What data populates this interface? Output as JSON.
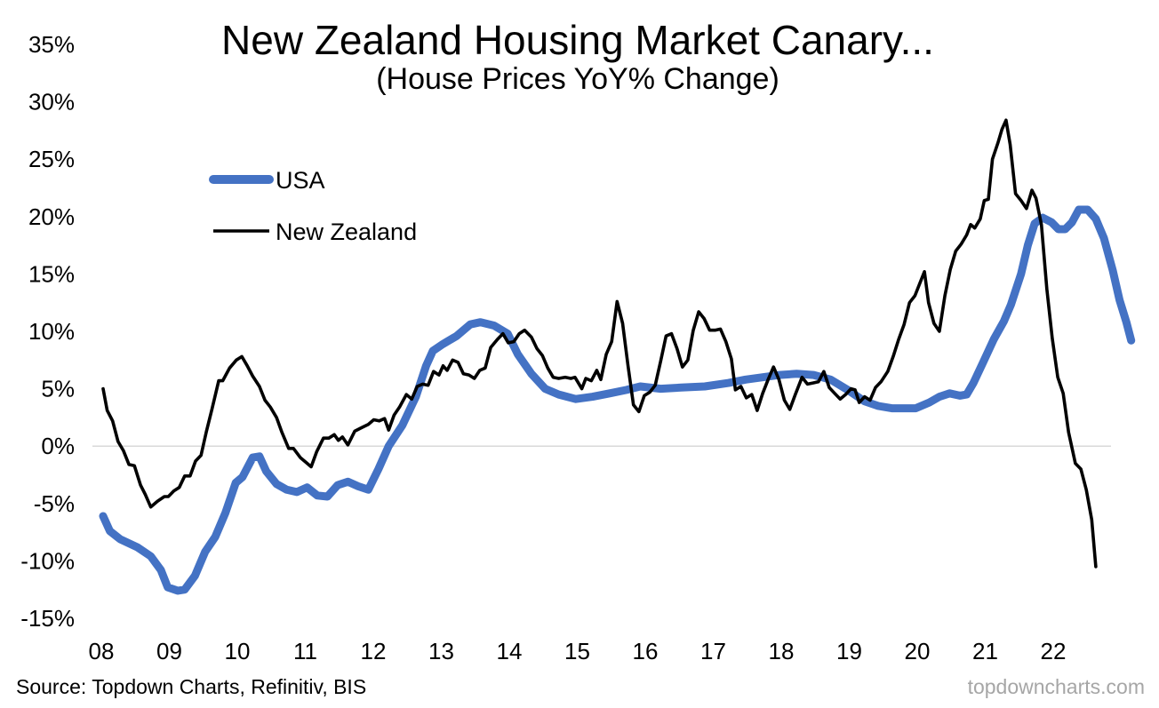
{
  "chart_data": {
    "type": "line",
    "title": "New Zealand Housing Market Canary...",
    "subtitle": "(House Prices YoY% Change)",
    "source": "Source: Topdown Charts, Refinitiv, BIS",
    "watermark": "topdowncharts.com",
    "xlabel": "",
    "ylabel": "",
    "x_tick_labels": [
      "08",
      "09",
      "10",
      "11",
      "12",
      "13",
      "14",
      "15",
      "16",
      "17",
      "18",
      "19",
      "20",
      "21",
      "22"
    ],
    "y_ticks": [
      -15,
      -10,
      -5,
      0,
      5,
      10,
      15,
      20,
      25,
      30,
      35
    ],
    "y_tick_labels": [
      "-15%",
      "-10%",
      "-5%",
      "0%",
      "5%",
      "10%",
      "15%",
      "20%",
      "25%",
      "30%",
      "35%"
    ],
    "ylim": [
      -15,
      35
    ],
    "grid": false,
    "zero_line": true,
    "legend": {
      "position": "top-left"
    },
    "series": [
      {
        "name": "USA",
        "color": "#4472C4",
        "points": [
          [
            2008.0,
            -6.1
          ],
          [
            2008.1,
            -7.4
          ],
          [
            2008.25,
            -8.1
          ],
          [
            2008.5,
            -8.8
          ],
          [
            2008.7,
            -9.6
          ],
          [
            2008.85,
            -10.8
          ],
          [
            2008.95,
            -12.3
          ],
          [
            2009.1,
            -12.6
          ],
          [
            2009.2,
            -12.5
          ],
          [
            2009.35,
            -11.3
          ],
          [
            2009.5,
            -9.2
          ],
          [
            2009.65,
            -7.9
          ],
          [
            2009.8,
            -5.8
          ],
          [
            2009.95,
            -3.2
          ],
          [
            2010.05,
            -2.7
          ],
          [
            2010.2,
            -1.0
          ],
          [
            2010.3,
            -0.9
          ],
          [
            2010.4,
            -2.2
          ],
          [
            2010.55,
            -3.3
          ],
          [
            2010.7,
            -3.8
          ],
          [
            2010.85,
            -4.0
          ],
          [
            2011.0,
            -3.6
          ],
          [
            2011.15,
            -4.3
          ],
          [
            2011.3,
            -4.4
          ],
          [
            2011.45,
            -3.4
          ],
          [
            2011.6,
            -3.1
          ],
          [
            2011.75,
            -3.5
          ],
          [
            2011.9,
            -3.8
          ],
          [
            2012.05,
            -2.0
          ],
          [
            2012.2,
            0.0
          ],
          [
            2012.4,
            1.8
          ],
          [
            2012.6,
            4.3
          ],
          [
            2012.75,
            7.0
          ],
          [
            2012.85,
            8.3
          ],
          [
            2013.0,
            8.9
          ],
          [
            2013.2,
            9.6
          ],
          [
            2013.4,
            10.6
          ],
          [
            2013.55,
            10.8
          ],
          [
            2013.75,
            10.5
          ],
          [
            2013.95,
            9.8
          ],
          [
            2014.1,
            8.0
          ],
          [
            2014.3,
            6.3
          ],
          [
            2014.5,
            5.0
          ],
          [
            2014.7,
            4.5
          ],
          [
            2014.95,
            4.1
          ],
          [
            2015.2,
            4.3
          ],
          [
            2015.45,
            4.6
          ],
          [
            2015.7,
            4.9
          ],
          [
            2015.9,
            5.2
          ],
          [
            2016.2,
            5.0
          ],
          [
            2016.5,
            5.1
          ],
          [
            2016.85,
            5.2
          ],
          [
            2017.2,
            5.5
          ],
          [
            2017.45,
            5.8
          ],
          [
            2017.7,
            6.0
          ],
          [
            2017.95,
            6.2
          ],
          [
            2018.2,
            6.3
          ],
          [
            2018.45,
            6.2
          ],
          [
            2018.7,
            5.8
          ],
          [
            2018.95,
            4.9
          ],
          [
            2019.2,
            3.9
          ],
          [
            2019.4,
            3.5
          ],
          [
            2019.6,
            3.3
          ],
          [
            2019.95,
            3.3
          ],
          [
            2020.15,
            3.8
          ],
          [
            2020.3,
            4.3
          ],
          [
            2020.45,
            4.6
          ],
          [
            2020.6,
            4.4
          ],
          [
            2020.7,
            4.5
          ],
          [
            2020.8,
            5.5
          ],
          [
            2020.95,
            7.4
          ],
          [
            2021.1,
            9.3
          ],
          [
            2021.25,
            10.9
          ],
          [
            2021.35,
            12.3
          ],
          [
            2021.5,
            15.0
          ],
          [
            2021.6,
            17.5
          ],
          [
            2021.7,
            19.4
          ],
          [
            2021.82,
            19.9
          ],
          [
            2021.95,
            19.5
          ],
          [
            2022.05,
            18.9
          ],
          [
            2022.15,
            18.9
          ],
          [
            2022.25,
            19.5
          ],
          [
            2022.35,
            20.6
          ],
          [
            2022.48,
            20.6
          ],
          [
            2022.6,
            19.8
          ],
          [
            2022.72,
            18.1
          ],
          [
            2022.85,
            15.3
          ],
          [
            2022.95,
            12.7
          ],
          [
            2023.05,
            10.8
          ],
          [
            2023.12,
            9.2
          ]
        ]
      },
      {
        "name": "New Zealand",
        "color": "#000000",
        "points": [
          [
            2008.0,
            5.0
          ],
          [
            2008.06,
            3.1
          ],
          [
            2008.14,
            2.2
          ],
          [
            2008.22,
            0.4
          ],
          [
            2008.3,
            -0.4
          ],
          [
            2008.38,
            -1.6
          ],
          [
            2008.46,
            -1.7
          ],
          [
            2008.55,
            -3.4
          ],
          [
            2008.62,
            -4.2
          ],
          [
            2008.7,
            -5.3
          ],
          [
            2008.8,
            -4.8
          ],
          [
            2008.9,
            -4.4
          ],
          [
            2008.96,
            -4.4
          ],
          [
            2009.04,
            -3.9
          ],
          [
            2009.12,
            -3.6
          ],
          [
            2009.2,
            -2.6
          ],
          [
            2009.28,
            -2.6
          ],
          [
            2009.36,
            -1.3
          ],
          [
            2009.44,
            -0.8
          ],
          [
            2009.52,
            1.3
          ],
          [
            2009.6,
            3.2
          ],
          [
            2009.7,
            5.7
          ],
          [
            2009.76,
            5.7
          ],
          [
            2009.86,
            6.8
          ],
          [
            2009.96,
            7.5
          ],
          [
            2010.04,
            7.8
          ],
          [
            2010.12,
            7.0
          ],
          [
            2010.2,
            6.1
          ],
          [
            2010.3,
            5.2
          ],
          [
            2010.38,
            4.0
          ],
          [
            2010.46,
            3.4
          ],
          [
            2010.55,
            2.5
          ],
          [
            2010.63,
            1.2
          ],
          [
            2010.73,
            -0.2
          ],
          [
            2010.8,
            -0.2
          ],
          [
            2010.9,
            -1.0
          ],
          [
            2010.98,
            -1.4
          ],
          [
            2011.06,
            -1.8
          ],
          [
            2011.14,
            -0.5
          ],
          [
            2011.24,
            0.7
          ],
          [
            2011.32,
            0.7
          ],
          [
            2011.4,
            1.0
          ],
          [
            2011.46,
            0.5
          ],
          [
            2011.52,
            0.8
          ],
          [
            2011.6,
            0.1
          ],
          [
            2011.7,
            1.3
          ],
          [
            2011.8,
            1.6
          ],
          [
            2011.9,
            1.9
          ],
          [
            2011.98,
            2.3
          ],
          [
            2012.06,
            2.2
          ],
          [
            2012.14,
            2.4
          ],
          [
            2012.2,
            1.4
          ],
          [
            2012.28,
            2.7
          ],
          [
            2012.36,
            3.4
          ],
          [
            2012.46,
            4.5
          ],
          [
            2012.54,
            4.1
          ],
          [
            2012.62,
            5.2
          ],
          [
            2012.7,
            5.4
          ],
          [
            2012.78,
            5.3
          ],
          [
            2012.86,
            6.5
          ],
          [
            2012.94,
            6.2
          ],
          [
            2013.0,
            7.0
          ],
          [
            2013.06,
            6.6
          ],
          [
            2013.14,
            7.5
          ],
          [
            2013.22,
            7.3
          ],
          [
            2013.3,
            6.3
          ],
          [
            2013.38,
            6.2
          ],
          [
            2013.46,
            5.9
          ],
          [
            2013.54,
            6.6
          ],
          [
            2013.62,
            6.8
          ],
          [
            2013.7,
            8.6
          ],
          [
            2013.8,
            9.3
          ],
          [
            2013.88,
            9.8
          ],
          [
            2013.96,
            9.0
          ],
          [
            2014.04,
            9.1
          ],
          [
            2014.12,
            9.8
          ],
          [
            2014.2,
            10.1
          ],
          [
            2014.3,
            9.5
          ],
          [
            2014.38,
            8.5
          ],
          [
            2014.46,
            7.9
          ],
          [
            2014.54,
            6.8
          ],
          [
            2014.62,
            6.0
          ],
          [
            2014.7,
            5.9
          ],
          [
            2014.8,
            6.0
          ],
          [
            2014.88,
            5.9
          ],
          [
            2014.94,
            6.0
          ],
          [
            2015.04,
            5.0
          ],
          [
            2015.1,
            5.9
          ],
          [
            2015.18,
            5.7
          ],
          [
            2015.26,
            6.6
          ],
          [
            2015.32,
            5.8
          ],
          [
            2015.4,
            8.0
          ],
          [
            2015.48,
            9.1
          ],
          [
            2015.56,
            12.6
          ],
          [
            2015.64,
            10.7
          ],
          [
            2015.72,
            7.0
          ],
          [
            2015.8,
            3.6
          ],
          [
            2015.88,
            3.0
          ],
          [
            2015.96,
            4.4
          ],
          [
            2016.04,
            4.7
          ],
          [
            2016.12,
            5.3
          ],
          [
            2016.2,
            7.4
          ],
          [
            2016.28,
            9.6
          ],
          [
            2016.36,
            9.8
          ],
          [
            2016.44,
            8.5
          ],
          [
            2016.52,
            6.9
          ],
          [
            2016.6,
            7.5
          ],
          [
            2016.68,
            10.1
          ],
          [
            2016.76,
            11.7
          ],
          [
            2016.84,
            11.1
          ],
          [
            2016.92,
            10.1
          ],
          [
            2017.0,
            10.1
          ],
          [
            2017.08,
            10.2
          ],
          [
            2017.16,
            9.1
          ],
          [
            2017.24,
            7.6
          ],
          [
            2017.3,
            4.9
          ],
          [
            2017.38,
            5.2
          ],
          [
            2017.46,
            4.2
          ],
          [
            2017.54,
            4.5
          ],
          [
            2017.62,
            3.1
          ],
          [
            2017.7,
            4.6
          ],
          [
            2017.78,
            5.8
          ],
          [
            2017.86,
            6.9
          ],
          [
            2017.94,
            5.8
          ],
          [
            2018.02,
            4.0
          ],
          [
            2018.1,
            3.2
          ],
          [
            2018.18,
            4.5
          ],
          [
            2018.28,
            6.0
          ],
          [
            2018.36,
            5.4
          ],
          [
            2018.44,
            5.5
          ],
          [
            2018.52,
            5.6
          ],
          [
            2018.6,
            6.5
          ],
          [
            2018.68,
            5.1
          ],
          [
            2018.76,
            4.6
          ],
          [
            2018.84,
            4.1
          ],
          [
            2018.92,
            4.5
          ],
          [
            2019.0,
            5.0
          ],
          [
            2019.06,
            4.9
          ],
          [
            2019.12,
            3.8
          ],
          [
            2019.2,
            4.3
          ],
          [
            2019.28,
            4.0
          ],
          [
            2019.36,
            5.1
          ],
          [
            2019.44,
            5.6
          ],
          [
            2019.54,
            6.5
          ],
          [
            2019.62,
            7.8
          ],
          [
            2019.7,
            9.3
          ],
          [
            2019.78,
            10.6
          ],
          [
            2019.86,
            12.5
          ],
          [
            2019.94,
            13.1
          ],
          [
            2020.02,
            14.3
          ],
          [
            2020.08,
            15.2
          ],
          [
            2020.14,
            12.5
          ],
          [
            2020.22,
            10.7
          ],
          [
            2020.3,
            10.0
          ],
          [
            2020.38,
            13.1
          ],
          [
            2020.46,
            15.4
          ],
          [
            2020.54,
            17.0
          ],
          [
            2020.62,
            17.6
          ],
          [
            2020.7,
            18.4
          ],
          [
            2020.76,
            19.3
          ],
          [
            2020.82,
            19.0
          ],
          [
            2020.9,
            19.8
          ],
          [
            2020.96,
            21.4
          ],
          [
            2021.02,
            21.5
          ],
          [
            2021.08,
            25.0
          ],
          [
            2021.16,
            26.4
          ],
          [
            2021.22,
            27.6
          ],
          [
            2021.28,
            28.4
          ],
          [
            2021.34,
            26.3
          ],
          [
            2021.42,
            22.0
          ],
          [
            2021.5,
            21.4
          ],
          [
            2021.58,
            20.7
          ],
          [
            2021.66,
            22.3
          ],
          [
            2021.72,
            21.6
          ],
          [
            2021.8,
            19.3
          ],
          [
            2021.88,
            13.7
          ],
          [
            2021.96,
            9.4
          ],
          [
            2022.04,
            6.0
          ],
          [
            2022.12,
            4.6
          ],
          [
            2022.2,
            1.2
          ],
          [
            2022.3,
            -1.5
          ],
          [
            2022.38,
            -2.0
          ],
          [
            2022.46,
            -3.8
          ],
          [
            2022.54,
            -6.4
          ],
          [
            2022.6,
            -10.5
          ]
        ]
      }
    ]
  }
}
